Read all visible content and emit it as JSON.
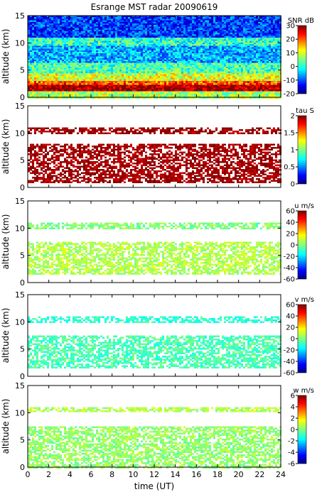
{
  "chart_data": {
    "type": "heatmap",
    "title": "Esrange MST radar 20090619",
    "xlabel": "time (UT)",
    "xlim": [
      0,
      24
    ],
    "xticks": [
      "0",
      "2",
      "4",
      "6",
      "8",
      "10",
      "12",
      "14",
      "16",
      "18",
      "20",
      "22",
      "24"
    ],
    "panels": [
      {
        "variable": "SNR",
        "colorbar_label": "SNR dB",
        "ylabel": "altitude (km)",
        "ylim": [
          0,
          15
        ],
        "yticks": [
          "0",
          "5",
          "10",
          "15"
        ],
        "clim": [
          -20,
          30
        ],
        "cticks": [
          "30",
          "20",
          "10",
          "0",
          "-10",
          "-20"
        ],
        "layers": [
          {
            "alt": [
              0.0,
              1.2
            ],
            "level": 0.55
          },
          {
            "alt": [
              1.2,
              2.6
            ],
            "level": 0.98
          },
          {
            "alt": [
              2.6,
              3.2
            ],
            "level": 0.8
          },
          {
            "alt": [
              3.2,
              4.5
            ],
            "level": 0.6
          },
          {
            "alt": [
              4.5,
              6.5
            ],
            "level": 0.45
          },
          {
            "alt": [
              6.5,
              9.5
            ],
            "level": 0.3
          },
          {
            "alt": [
              9.5,
              11.2
            ],
            "level": 0.42
          },
          {
            "alt": [
              11.2,
              15.0
            ],
            "level": 0.18
          }
        ]
      },
      {
        "variable": "tau",
        "colorbar_label": "tau S",
        "ylabel": "altitude (km)",
        "ylim": [
          0,
          15
        ],
        "yticks": [
          "0",
          "5",
          "10",
          "15"
        ],
        "clim": [
          0,
          2
        ],
        "cticks": [
          "2",
          "1.5",
          "1",
          "0.5",
          "0"
        ],
        "layers": [
          {
            "alt": [
              1.0,
              8.0
            ],
            "level": 0.97
          },
          {
            "alt": [
              10.0,
              11.0
            ],
            "level": 0.97
          }
        ]
      },
      {
        "variable": "u",
        "colorbar_label": "u m/s",
        "ylabel": "altitude (km)",
        "ylim": [
          0,
          15
        ],
        "yticks": [
          "0",
          "5",
          "10",
          "15"
        ],
        "clim": [
          -60,
          60
        ],
        "cticks": [
          "60",
          "40",
          "20",
          "0",
          "-20",
          "-40",
          "-60"
        ],
        "layers": [
          {
            "alt": [
              1.5,
              7.5
            ],
            "level": 0.55
          },
          {
            "alt": [
              10.0,
              11.0
            ],
            "level": 0.5
          }
        ]
      },
      {
        "variable": "v",
        "colorbar_label": "v m/s",
        "ylabel": "altitude (km)",
        "ylim": [
          0,
          15
        ],
        "yticks": [
          "0",
          "5",
          "10",
          "15"
        ],
        "clim": [
          -60,
          60
        ],
        "cticks": [
          "60",
          "40",
          "20",
          "0",
          "-20",
          "-40",
          "-60"
        ],
        "layers": [
          {
            "alt": [
              1.5,
              7.5
            ],
            "level": 0.45
          },
          {
            "alt": [
              10.0,
              11.0
            ],
            "level": 0.42
          }
        ]
      },
      {
        "variable": "w",
        "colorbar_label": "w m/s",
        "ylabel": "altitude (km)",
        "ylim": [
          0,
          15
        ],
        "yticks": [
          "0",
          "5",
          "10",
          "15"
        ],
        "clim": [
          -6,
          6
        ],
        "cticks": [
          "6",
          "4",
          "2",
          "0",
          "-2",
          "-4",
          "-6"
        ],
        "layers": [
          {
            "alt": [
              0.0,
              7.5
            ],
            "level": 0.52
          },
          {
            "alt": [
              10.2,
              11.0
            ],
            "level": 0.55
          }
        ]
      }
    ]
  }
}
